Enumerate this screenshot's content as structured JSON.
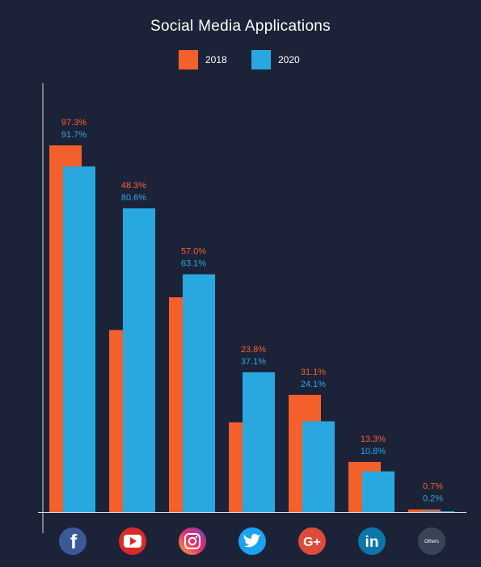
{
  "colors": {
    "background": "#1c2338",
    "series_2018": "#f4602b",
    "series_2020": "#29a8e0",
    "axis": "#d9dce3"
  },
  "chart_data": {
    "type": "bar",
    "title": "Social Media Applications",
    "categories": [
      "Facebook",
      "YouTube",
      "Instagram",
      "Twitter",
      "Google+",
      "LinkedIn",
      "Others"
    ],
    "category_icons": [
      "facebook-icon",
      "youtube-icon",
      "instagram-icon",
      "twitter-icon",
      "google-plus-icon",
      "linkedin-icon",
      "others-icon"
    ],
    "others_icon_text": "Others",
    "series": [
      {
        "name": "2018",
        "values": [
          97.3,
          48.3,
          57.0,
          23.8,
          31.1,
          13.3,
          0.7
        ],
        "labels": [
          "97.3%",
          "48.3%",
          "57.0%",
          "23.8%",
          "31.1%",
          "13.3%",
          "0.7%"
        ]
      },
      {
        "name": "2020",
        "values": [
          91.7,
          80.6,
          63.1,
          37.1,
          24.1,
          10.8,
          0.2
        ],
        "labels": [
          "91.7%",
          "80.6%",
          "63.1%",
          "37.1%",
          "24.1%",
          "10.8%",
          "0.2%"
        ]
      }
    ],
    "ylim": [
      0,
      100
    ],
    "legend": "top-center",
    "grid": false,
    "xlabel": "",
    "ylabel": ""
  }
}
